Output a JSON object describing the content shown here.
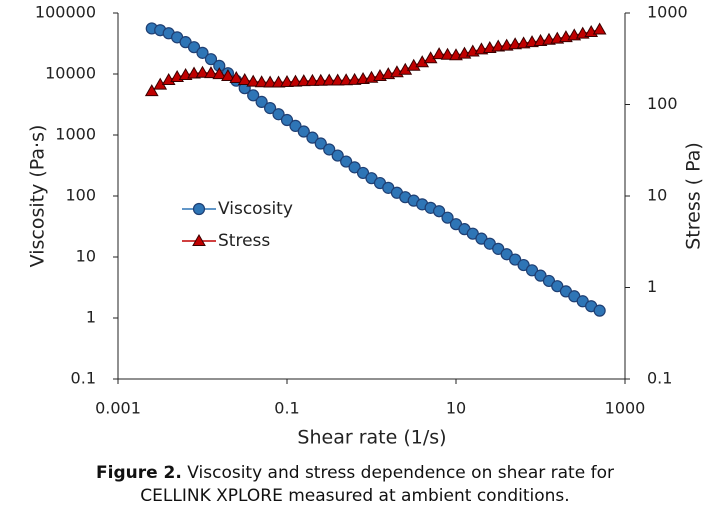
{
  "chart_data": {
    "type": "line",
    "xlabel": "Shear rate (1/s)",
    "ylabel": "Viscosity (Pa·s)",
    "y2label": "Stress ( Pa)",
    "xscale": "log",
    "yscale": "log",
    "y2scale": "log",
    "xlim": [
      0.001,
      1000
    ],
    "xticks": [
      0.001,
      0.1,
      10,
      1000
    ],
    "ylim": [
      0.1,
      100000
    ],
    "yticks": [
      0.1,
      1,
      10,
      100,
      1000,
      10000,
      100000
    ],
    "y2lim": [
      0.1,
      1000
    ],
    "y2ticks": [
      0.1,
      1,
      10,
      100,
      1000
    ],
    "legend": "center-left",
    "x": [
      0.00251,
      0.00316,
      0.00398,
      0.00501,
      0.00631,
      0.00794,
      0.01,
      0.0126,
      0.0158,
      0.02,
      0.0251,
      0.0316,
      0.0398,
      0.0501,
      0.0631,
      0.0794,
      0.1,
      0.126,
      0.158,
      0.2,
      0.251,
      0.316,
      0.398,
      0.501,
      0.631,
      0.794,
      1,
      1.26,
      1.58,
      2,
      2.51,
      3.16,
      3.98,
      5.01,
      6.31,
      7.94,
      10,
      12.6,
      15.8,
      20,
      25.1,
      31.6,
      39.8,
      50.1,
      63.1,
      79.4,
      100,
      126,
      158,
      200,
      251,
      316,
      398,
      501
    ],
    "series": [
      {
        "name": "Viscosity",
        "color": "#2e75b6",
        "edge": "#1f3f73",
        "marker": "circle",
        "axis": "y",
        "values": [
          55800,
          52200,
          46500,
          39900,
          33300,
          27500,
          22200,
          17500,
          13600,
          10300,
          7770,
          5850,
          4470,
          3490,
          2760,
          2190,
          1760,
          1410,
          1140,
          905,
          725,
          579,
          460,
          367,
          295,
          239,
          196,
          163,
          136,
          113,
          95.6,
          83.9,
          72.9,
          63.9,
          56.3,
          44.1,
          34.5,
          28.6,
          24.1,
          20,
          16.5,
          13.6,
          11.1,
          9.08,
          7.37,
          6.05,
          4.95,
          4.05,
          3.32,
          2.73,
          2.27,
          1.88,
          1.56,
          1.32
        ]
      },
      {
        "name": "Stress",
        "color": "#c00000",
        "edge": "#3a0000",
        "marker": "triangle",
        "axis": "y2",
        "values": [
          140,
          165,
          185,
          200,
          210,
          218,
          222,
          220,
          215,
          205,
          195,
          185,
          178,
          175,
          174,
          174,
          176,
          178,
          180,
          181,
          182,
          183,
          183,
          184,
          186,
          190,
          196,
          205,
          215,
          225,
          240,
          265,
          290,
          320,
          355,
          350,
          345,
          360,
          380,
          400,
          415,
          430,
          440,
          455,
          465,
          480,
          495,
          510,
          525,
          545,
          570,
          595,
          620,
          660
        ]
      }
    ]
  },
  "caption": {
    "label": "Figure 2.",
    "text": " Viscosity and stress dependence on shear rate for CELLINK XPLORE measured at ambient conditions."
  }
}
